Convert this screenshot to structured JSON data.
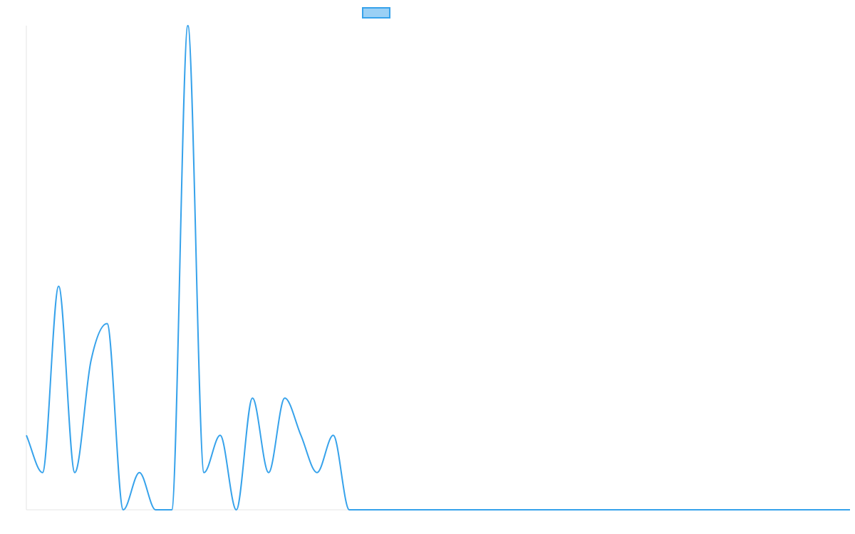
{
  "legend": {
    "label": ""
  },
  "colors": {
    "line": "#36a2eb",
    "legend_fill": "#9ad0f5",
    "axis": "#e6e6e6"
  },
  "chart_data": {
    "type": "line",
    "legend_position": "top",
    "grid": false,
    "show_ticks": false,
    "ylim": [
      0,
      13
    ],
    "xlim": [
      0,
      51
    ],
    "series": [
      {
        "values": [
          2,
          1,
          6,
          1,
          4,
          5,
          0,
          1,
          0,
          0,
          13,
          1,
          2,
          0,
          3,
          1,
          3,
          2,
          1,
          2,
          0,
          0,
          0,
          0,
          0,
          0,
          0,
          0,
          0,
          0,
          0,
          0,
          0,
          0,
          0,
          0,
          0,
          0,
          0,
          0,
          0,
          0,
          0,
          0,
          0,
          0,
          0,
          0,
          0,
          0,
          0,
          0
        ]
      }
    ]
  }
}
